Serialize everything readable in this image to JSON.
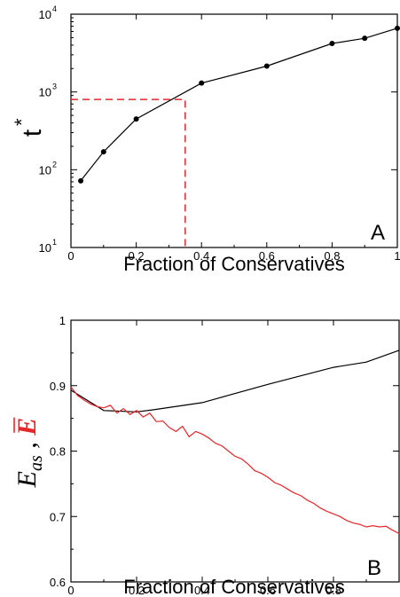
{
  "colors": {
    "axis": "#000000",
    "series_black": "#000000",
    "series_red": "#e8262a"
  },
  "chart_data": [
    {
      "type": "line",
      "panel_label": "A",
      "xlabel": "Fraction of Conservatives",
      "ylabel_main": "t",
      "ylabel_sup": "*",
      "xlim": [
        0,
        1
      ],
      "ylim": [
        10,
        10000
      ],
      "yscale": "log",
      "x_ticks": [
        "0",
        "0.2",
        "0.4",
        "0.6",
        "0.8",
        "1"
      ],
      "y_ticks": [
        {
          "base": "10",
          "exp": "1"
        },
        {
          "base": "10",
          "exp": "2"
        },
        {
          "base": "10",
          "exp": "3"
        },
        {
          "base": "10",
          "exp": "4"
        }
      ],
      "series": [
        {
          "x": [
            0.03,
            0.1,
            0.2,
            0.4,
            0.6,
            0.8,
            0.9,
            1.0
          ],
          "y": [
            72,
            170,
            450,
            1300,
            2150,
            4200,
            4900,
            6600
          ]
        }
      ],
      "annotation": {
        "style": "dashed",
        "color": "#e8262a",
        "x": 0.35,
        "y": 800
      }
    },
    {
      "type": "line",
      "panel_label": "B",
      "xlabel": "Fraction of Conservatives",
      "ylabel_e": "E",
      "ylabel_sub": "as",
      "ylabel_sep": " , ",
      "ylabel_ebar": "E",
      "xlim": [
        0,
        1
      ],
      "ylim": [
        0.6,
        1
      ],
      "x_ticks": [
        "0",
        "0.2",
        "0.4",
        "0.6",
        "0.8"
      ],
      "y_ticks": [
        "0.6",
        "0.7",
        "0.8",
        "0.9",
        "1"
      ],
      "series": [
        {
          "color": "#000000",
          "x": [
            0,
            0.1,
            0.2,
            0.25,
            0.4,
            0.6,
            0.8,
            0.9,
            1.0
          ],
          "y": [
            0.893,
            0.862,
            0.86,
            0.863,
            0.874,
            0.902,
            0.928,
            0.936,
            0.954
          ]
        },
        {
          "color": "#e8262a",
          "x": [
            0,
            0.02,
            0.04,
            0.06,
            0.08,
            0.1,
            0.12,
            0.14,
            0.16,
            0.18,
            0.2,
            0.22,
            0.24,
            0.26,
            0.28,
            0.3,
            0.32,
            0.34,
            0.36,
            0.38,
            0.4,
            0.42,
            0.44,
            0.46,
            0.48,
            0.5,
            0.52,
            0.54,
            0.56,
            0.58,
            0.6,
            0.62,
            0.64,
            0.66,
            0.68,
            0.7,
            0.72,
            0.74,
            0.76,
            0.78,
            0.8,
            0.82,
            0.84,
            0.86,
            0.88,
            0.9,
            0.92,
            0.94,
            0.96,
            0.98,
            1.0
          ],
          "y": [
            0.898,
            0.885,
            0.878,
            0.872,
            0.868,
            0.866,
            0.87,
            0.858,
            0.865,
            0.856,
            0.862,
            0.852,
            0.858,
            0.845,
            0.846,
            0.836,
            0.83,
            0.838,
            0.822,
            0.83,
            0.826,
            0.82,
            0.812,
            0.808,
            0.8,
            0.792,
            0.788,
            0.78,
            0.77,
            0.766,
            0.76,
            0.752,
            0.748,
            0.742,
            0.736,
            0.732,
            0.725,
            0.72,
            0.713,
            0.708,
            0.704,
            0.7,
            0.694,
            0.69,
            0.688,
            0.684,
            0.686,
            0.684,
            0.685,
            0.679,
            0.674
          ]
        }
      ]
    }
  ]
}
